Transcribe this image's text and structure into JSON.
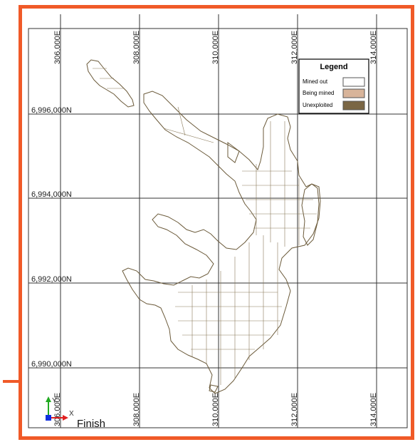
{
  "map": {
    "easting_top": [
      "306,000E",
      "308,000E",
      "310,000E",
      "312,000E",
      "314,000E"
    ],
    "easting_bottom": [
      "306,000E",
      "308,000E",
      "310,000E",
      "312,000E",
      "314,000E"
    ],
    "northing": [
      "6,996,000N",
      "6,994,000N",
      "6,992,000N",
      "6,990,000N"
    ],
    "legend": {
      "title": "Legend",
      "items": [
        {
          "label": "Mined out",
          "color": "#ffffff"
        },
        {
          "label": "Being mined",
          "color": "#d8b49a"
        },
        {
          "label": "Unexploited",
          "color": "#7a6644"
        }
      ]
    },
    "axis": {
      "y_label": "Y",
      "x_label": "X"
    },
    "status": "Finish",
    "colors": {
      "frame": "#f05a28",
      "grid": "#333333",
      "ore_outline": "#6b5a3a"
    }
  }
}
